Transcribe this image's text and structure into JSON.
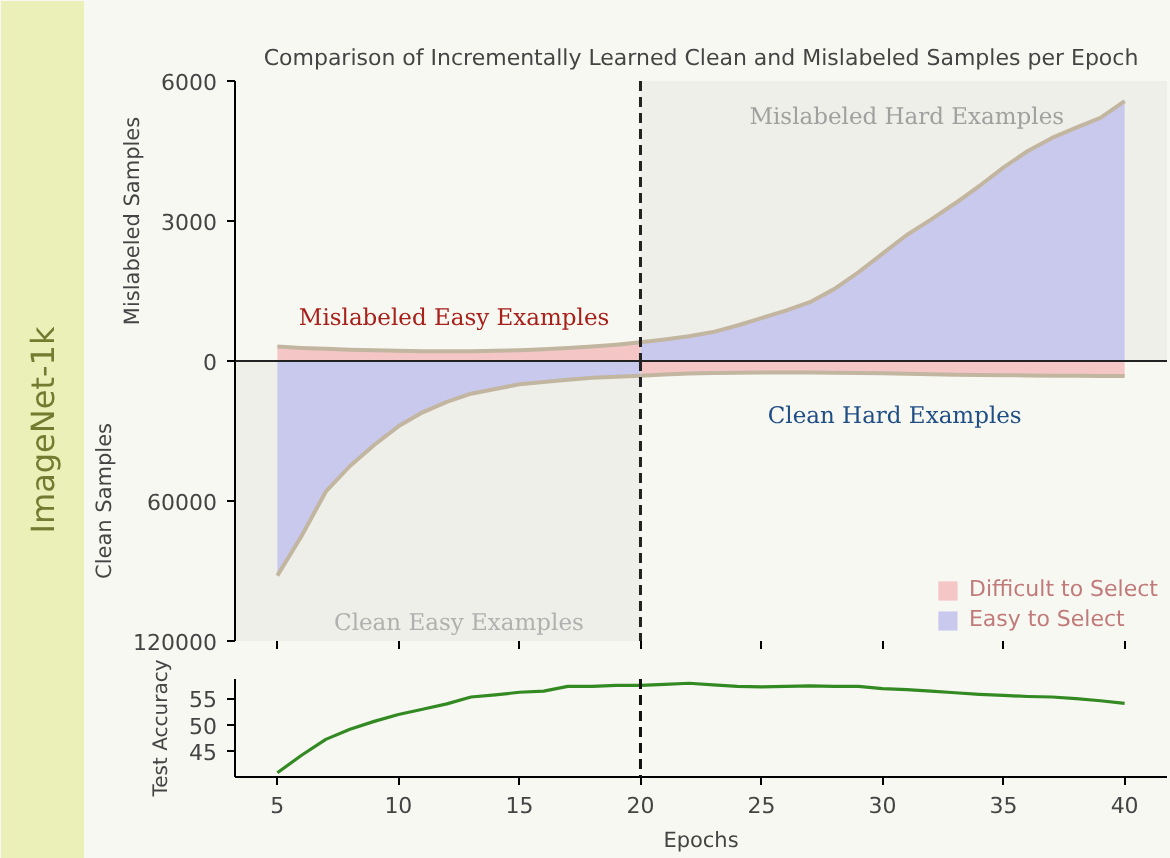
{
  "chart_data": [
    {
      "type": "area",
      "title": "Comparison of Incrementally Learned Clean and Mislabeled Samples per Epoch",
      "ylabel": "Mislabeled Samples",
      "x": [
        5,
        6,
        7,
        8,
        9,
        10,
        11,
        12,
        13,
        14,
        15,
        16,
        17,
        18,
        19,
        20,
        21,
        22,
        23,
        24,
        25,
        26,
        27,
        28,
        29,
        30,
        31,
        32,
        33,
        34,
        35,
        36,
        37,
        38,
        39,
        40
      ],
      "series": [
        {
          "color": "#f4c6c6",
          "values": [
            310,
            280,
            260,
            240,
            230,
            220,
            210,
            210,
            210,
            220,
            230,
            250,
            280,
            310,
            350,
            400,
            null,
            null,
            null,
            null,
            null,
            null,
            null,
            null,
            null,
            null,
            null,
            null,
            null,
            null,
            null,
            null,
            null,
            null,
            null,
            null
          ]
        },
        {
          "color": "#c9c9ee",
          "values": [
            null,
            null,
            null,
            null,
            null,
            null,
            null,
            null,
            null,
            null,
            null,
            null,
            null,
            null,
            null,
            400,
            460,
            530,
            620,
            760,
            920,
            1080,
            1260,
            1540,
            1900,
            2300,
            2700,
            3030,
            3380,
            3750,
            4150,
            4500,
            4780,
            5000,
            5210,
            5570
          ]
        }
      ],
      "xlim": [
        3.25,
        41.75
      ],
      "ylim": [
        0,
        6000
      ],
      "yticks": [
        0,
        3000,
        6000
      ],
      "tick_labels": "y",
      "ref_lines": [
        {
          "axis": "x",
          "value": 20,
          "color": "#222222",
          "line_style": "dashed"
        }
      ],
      "bands": [
        {
          "axis": "x",
          "from": 20,
          "to": 41.75,
          "color": "#efefe9"
        }
      ],
      "annotations": [
        "Mislabeled Easy Examples",
        "Mislabeled Hard Examples",
        "ImageNet-1k"
      ]
    },
    {
      "type": "area",
      "ylabel": "Clean Samples",
      "x": [
        5,
        6,
        7,
        8,
        9,
        10,
        11,
        12,
        13,
        14,
        15,
        16,
        17,
        18,
        19,
        20,
        21,
        22,
        23,
        24,
        25,
        26,
        27,
        28,
        29,
        30,
        31,
        32,
        33,
        34,
        35,
        36,
        37,
        38,
        39,
        40
      ],
      "series": [
        {
          "name": "Difficult to Select",
          "color": "#f4c6c6",
          "values": [
            null,
            null,
            null,
            null,
            null,
            null,
            null,
            null,
            null,
            null,
            null,
            null,
            null,
            null,
            null,
            6300,
            5800,
            5400,
            5100,
            5000,
            4900,
            4900,
            4900,
            5000,
            5100,
            5300,
            5500,
            5700,
            5900,
            6000,
            6100,
            6200,
            6300,
            6300,
            6400,
            6400
          ]
        },
        {
          "name": "Easy to Select",
          "color": "#c9c9ee",
          "values": [
            92000,
            75000,
            56000,
            45000,
            36000,
            28000,
            22000,
            17500,
            14000,
            12000,
            10000,
            9000,
            8000,
            7200,
            6700,
            6300,
            null,
            null,
            null,
            null,
            null,
            null,
            null,
            null,
            null,
            null,
            null,
            null,
            null,
            null,
            null,
            null,
            null,
            null,
            null,
            null
          ]
        }
      ],
      "xlim": [
        3.25,
        41.75
      ],
      "ylim": [
        120000,
        0
      ],
      "yticks": [
        {
          "value": 0,
          "label": null
        },
        60000,
        120000
      ],
      "xticks": [
        {
          "value": 5,
          "label": null
        },
        {
          "value": 10,
          "label": null
        },
        {
          "value": 15,
          "label": null
        },
        {
          "value": 20,
          "label": null
        },
        {
          "value": 25,
          "label": null
        },
        {
          "value": 30,
          "label": null
        },
        {
          "value": 35,
          "label": null
        },
        {
          "value": 40,
          "label": null
        }
      ],
      "tick_labels": "y",
      "legend": "bottom right",
      "ref_lines": [
        {
          "axis": "x",
          "value": 20,
          "color": "#222222",
          "line_style": "dashed"
        }
      ],
      "bands": [
        {
          "axis": "x",
          "from": 3.25,
          "to": 20,
          "color": "#efefe9"
        }
      ],
      "annotations": [
        "Clean Hard Examples",
        "Clean Easy Examples"
      ]
    },
    {
      "type": "line",
      "xlabel": "Epochs",
      "ylabel": "Test Accuracy",
      "x": [
        5,
        6,
        7,
        8,
        9,
        10,
        11,
        12,
        13,
        14,
        15,
        16,
        17,
        18,
        19,
        20,
        21,
        22,
        23,
        24,
        25,
        26,
        27,
        28,
        29,
        30,
        31,
        32,
        33,
        34,
        35,
        36,
        37,
        38,
        39,
        40
      ],
      "series": [
        {
          "color": "#338a22",
          "values": [
            40.9,
            44.2,
            47.2,
            49.1,
            50.6,
            51.9,
            52.9,
            53.9,
            55.2,
            55.6,
            56.1,
            56.3,
            57.2,
            57.2,
            57.4,
            57.4,
            57.6,
            57.8,
            57.5,
            57.2,
            57.1,
            57.2,
            57.3,
            57.2,
            57.2,
            56.8,
            56.6,
            56.3,
            56.0,
            55.7,
            55.5,
            55.3,
            55.2,
            54.9,
            54.5,
            54.0
          ]
        }
      ],
      "xlim": [
        3.25,
        41.75
      ],
      "ylim": [
        40.1,
        58.6
      ],
      "yticks": [
        45,
        50,
        55
      ],
      "xticks": [
        5,
        10,
        15,
        20,
        25,
        30,
        35,
        40
      ],
      "ref_lines": [
        {
          "axis": "x",
          "value": 20,
          "color": "#111111",
          "line_style": "dashed"
        }
      ]
    }
  ]
}
